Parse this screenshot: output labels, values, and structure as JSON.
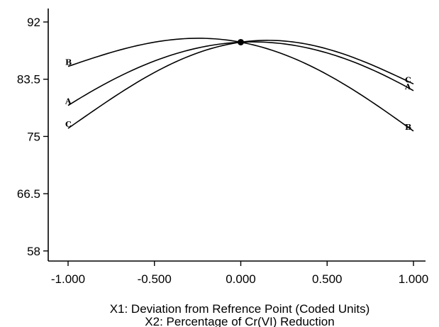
{
  "chart_data": {
    "type": "line",
    "xlabel": "X1: Deviation from Refrence Point (Coded Units)",
    "xlabel2": "X2: Percentage of Cr(VI) Reduction",
    "ylabel": "",
    "xlim": [
      -1.0,
      1.0
    ],
    "ylim": [
      56.5,
      94
    ],
    "x_ticks": [
      -1.0,
      -0.5,
      0.0,
      0.5,
      1.0
    ],
    "x_tick_labels": [
      "-1.000",
      "-0.500",
      "0.000",
      "0.500",
      "1.000"
    ],
    "y_ticks": [
      58,
      66.5,
      75,
      83.5,
      92
    ],
    "y_tick_labels": [
      "58",
      "66.5",
      "75",
      "83.5",
      "92"
    ],
    "grid": false,
    "reference_point": {
      "x": 0.0,
      "y": 89.0
    },
    "series": [
      {
        "name": "A",
        "x": [
          -1.0,
          -0.5,
          0.0,
          0.5,
          1.0
        ],
        "y": [
          79.6,
          86.2,
          89.0,
          87.4,
          81.8
        ]
      },
      {
        "name": "B",
        "x": [
          -1.0,
          -0.5,
          0.0,
          0.5,
          1.0
        ],
        "y": [
          85.4,
          89.0,
          89.0,
          84.2,
          75.8
        ]
      },
      {
        "name": "C",
        "x": [
          -1.0,
          -0.5,
          0.0,
          0.5,
          1.0
        ],
        "y": [
          76.2,
          84.5,
          89.0,
          88.0,
          82.8
        ]
      }
    ]
  }
}
